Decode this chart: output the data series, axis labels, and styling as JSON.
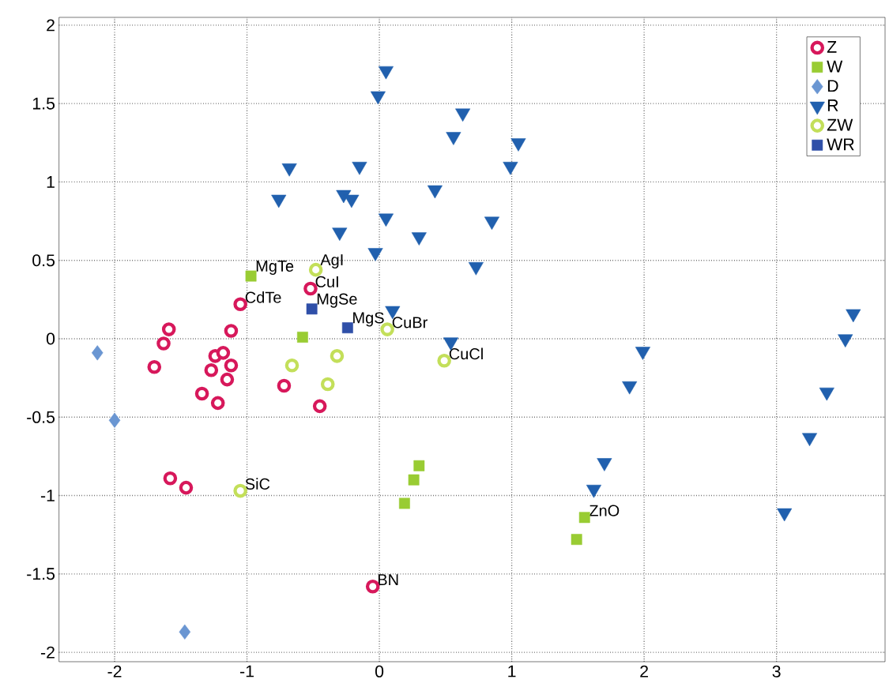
{
  "chart_data": {
    "type": "scatter",
    "xlim": [
      -2.42,
      3.82
    ],
    "ylim": [
      -2.06,
      2.05
    ],
    "xticks": [
      -2,
      -1,
      0,
      1,
      2,
      3
    ],
    "yticks": [
      -2,
      -1.5,
      -1,
      -0.5,
      0,
      0.5,
      1,
      1.5,
      2
    ],
    "grid": true,
    "legend": "top right",
    "series": [
      {
        "name": "Z",
        "color": "#d7185b",
        "marker": "circle",
        "x": [
          -1.59,
          -1.63,
          -1.7,
          -1.12,
          -1.05,
          -1.24,
          -1.18,
          -1.12,
          -1.27,
          -1.15,
          -1.34,
          -1.22,
          -0.72,
          -0.45,
          -0.52,
          -1.58,
          -1.46,
          -0.05
        ],
        "values": [
          0.06,
          -0.03,
          -0.18,
          0.05,
          0.22,
          -0.11,
          -0.09,
          -0.17,
          -0.2,
          -0.26,
          -0.35,
          -0.41,
          -0.3,
          -0.43,
          0.32,
          -0.89,
          -0.95,
          -1.58
        ]
      },
      {
        "name": "W",
        "color": "#99cc33",
        "marker": "square",
        "x": [
          -0.97,
          -0.58,
          0.3,
          0.26,
          0.19,
          1.55,
          1.49
        ],
        "values": [
          0.4,
          0.01,
          -0.81,
          -0.9,
          -1.05,
          -1.14,
          -1.28
        ]
      },
      {
        "name": "D",
        "color": "#6a96d2",
        "marker": "diamond",
        "x": [
          -2.13,
          -2.0,
          -1.47
        ],
        "values": [
          -0.09,
          -0.52,
          -1.87
        ]
      },
      {
        "name": "R",
        "color": "#2160ae",
        "marker": "triangle",
        "x": [
          0.05,
          -0.01,
          0.63,
          0.56,
          1.05,
          0.99,
          -0.15,
          -0.68,
          -0.76,
          -0.27,
          -0.21,
          0.42,
          0.05,
          0.85,
          -0.3,
          0.3,
          -0.03,
          0.73,
          0.1,
          0.54,
          3.58,
          3.52,
          1.99,
          1.89,
          3.38,
          3.25,
          1.7,
          1.62,
          3.06
        ],
        "values": [
          1.71,
          1.55,
          1.44,
          1.29,
          1.25,
          1.1,
          1.1,
          1.09,
          0.89,
          0.92,
          0.89,
          0.95,
          0.77,
          0.75,
          0.68,
          0.65,
          0.55,
          0.46,
          0.18,
          -0.02,
          0.16,
          0.0,
          -0.08,
          -0.3,
          -0.34,
          -0.63,
          -0.79,
          -0.96,
          -1.11
        ]
      },
      {
        "name": "ZW",
        "color": "#c3df5a",
        "marker": "circle",
        "x": [
          -0.48,
          0.06,
          0.49,
          -0.32,
          -0.66,
          -0.39,
          -1.05
        ],
        "values": [
          0.44,
          0.06,
          -0.14,
          -0.11,
          -0.17,
          -0.29,
          -0.97
        ]
      },
      {
        "name": "WR",
        "color": "#2f4fa8",
        "marker": "square",
        "x": [
          -0.51,
          -0.24
        ],
        "values": [
          0.19,
          0.07
        ]
      }
    ],
    "annotations": [
      {
        "text": "MgTe",
        "x": -0.97,
        "y": 0.4
      },
      {
        "text": "AgI",
        "x": -0.48,
        "y": 0.44
      },
      {
        "text": "CuI",
        "x": -0.52,
        "y": 0.32
      },
      {
        "text": "CdTe",
        "x": -1.05,
        "y": 0.22
      },
      {
        "text": "MgSe",
        "x": -0.51,
        "y": 0.19
      },
      {
        "text": "MgS",
        "x": -0.24,
        "y": 0.07
      },
      {
        "text": "CuBr",
        "x": 0.06,
        "y": 0.06
      },
      {
        "text": "CuCl",
        "x": 0.49,
        "y": -0.14
      },
      {
        "text": "SiC",
        "x": -1.05,
        "y": -0.97
      },
      {
        "text": "ZnO",
        "x": 1.55,
        "y": -1.14
      },
      {
        "text": "BN",
        "x": -0.05,
        "y": -1.58
      }
    ]
  }
}
